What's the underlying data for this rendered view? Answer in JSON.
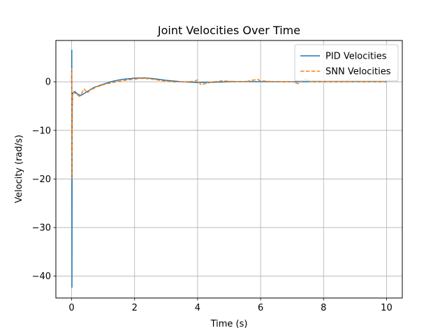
{
  "chart_data": {
    "type": "line",
    "title": "Joint Velocities Over Time",
    "xlabel": "Time (s)",
    "ylabel": "Velocity (rad/s)",
    "xlim": [
      -0.5,
      10.5
    ],
    "ylim": [
      -44.5,
      8.5
    ],
    "xticks": [
      0,
      2,
      4,
      6,
      8,
      10
    ],
    "xtick_labels": [
      "0",
      "2",
      "4",
      "6",
      "8",
      "10"
    ],
    "yticks": [
      0,
      -10,
      -20,
      -30,
      -40
    ],
    "ytick_labels": [
      "0",
      "−10",
      "−20",
      "−30",
      "−40"
    ],
    "grid": true,
    "legend_position": "upper right",
    "series": [
      {
        "name": "PID Velocities",
        "color": "#1f77b4",
        "style": "solid",
        "x": [
          0,
          0.005,
          0.01,
          0.015,
          0.02,
          0.03,
          0.05,
          0.1,
          0.2,
          0.3,
          0.5,
          0.7,
          1.0,
          1.3,
          1.6,
          2.0,
          2.3,
          2.6,
          3.0,
          3.5,
          4.0,
          4.5,
          5.0,
          5.5,
          6.0,
          7.0,
          8.0,
          9.0,
          10.0
        ],
        "y": [
          0,
          6.5,
          -42.3,
          -15,
          -5,
          -2.5,
          -2.2,
          -2.0,
          -2.6,
          -2.8,
          -2.0,
          -1.2,
          -0.5,
          0.1,
          0.5,
          0.75,
          0.8,
          0.65,
          0.3,
          0.0,
          -0.15,
          -0.1,
          0.0,
          0.05,
          0.03,
          0.0,
          0.0,
          0.0,
          0.0
        ]
      },
      {
        "name": "SNN Velocities",
        "color": "#ff7f0e",
        "style": "dashed",
        "x": [
          0,
          0.005,
          0.01,
          0.02,
          0.03,
          0.05,
          0.1,
          0.15,
          0.2,
          0.25,
          0.3,
          0.35,
          0.4,
          0.5,
          0.6,
          0.7,
          0.8,
          0.9,
          1.0,
          1.2,
          1.5,
          1.8,
          2.0,
          2.2,
          2.4,
          2.6,
          2.8,
          3.0,
          3.3,
          3.6,
          3.9,
          4.0,
          4.1,
          4.5,
          4.8,
          5.0,
          5.5,
          5.9,
          6.0,
          6.5,
          7.0,
          7.2,
          7.4,
          7.6,
          8.0,
          9.0,
          10.0
        ],
        "y": [
          0,
          2.7,
          -20,
          -4,
          -2.5,
          -2.2,
          -2.3,
          -2.5,
          -2.8,
          -3.0,
          -2.7,
          -2.0,
          -1.5,
          -2.3,
          -1.6,
          -1.4,
          -1.0,
          -0.9,
          -0.6,
          -0.3,
          0.1,
          0.4,
          0.55,
          0.7,
          0.65,
          0.5,
          0.3,
          0.1,
          -0.05,
          0.0,
          0.1,
          0.4,
          -0.6,
          0.0,
          0.2,
          0.1,
          0.0,
          0.5,
          0.2,
          0.0,
          0.0,
          -0.4,
          0.6,
          0.0,
          0.0,
          0.0,
          0.0
        ]
      }
    ]
  }
}
